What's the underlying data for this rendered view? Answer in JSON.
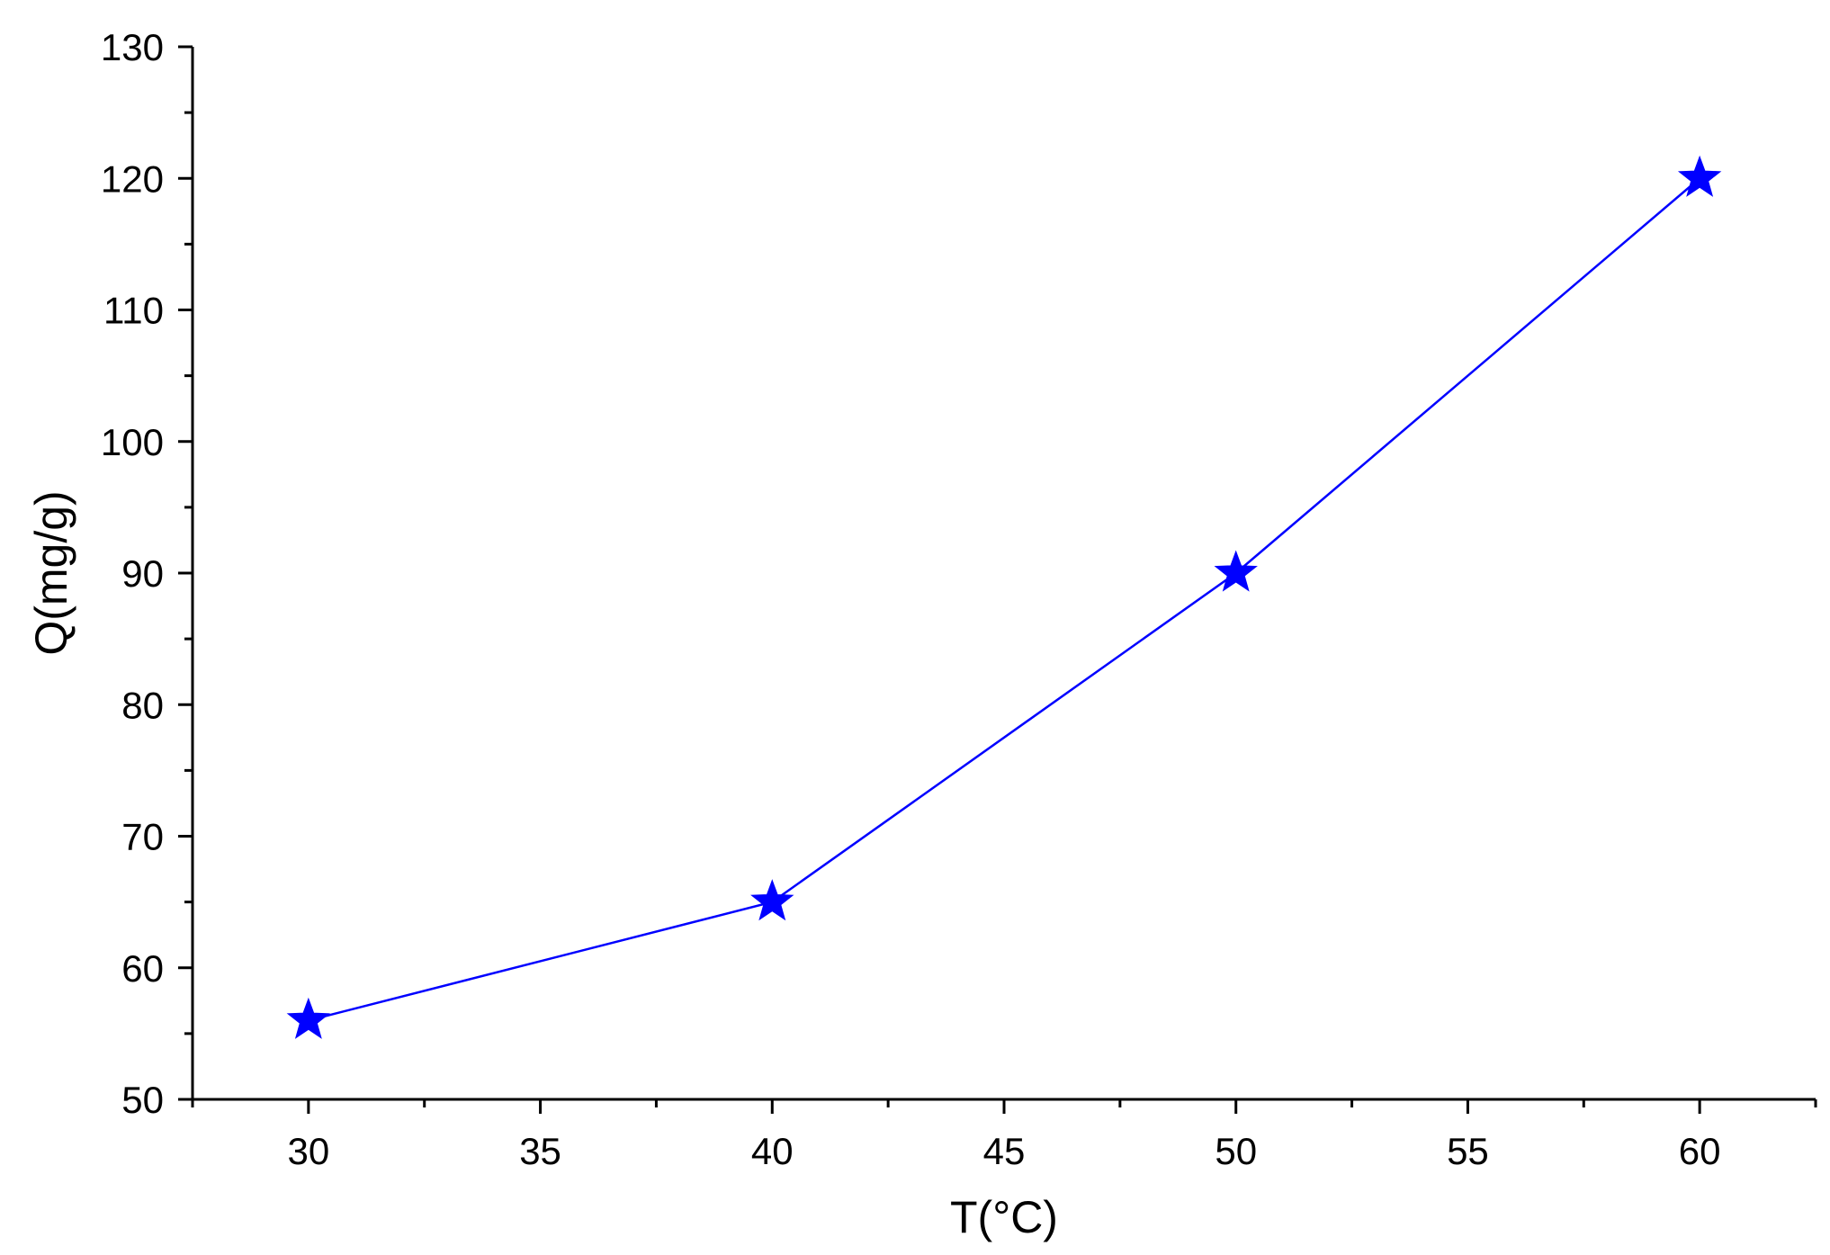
{
  "chart_data": {
    "type": "line",
    "title": "",
    "xlabel": "T(°C)",
    "ylabel": "Q(mg/g)",
    "xlim": [
      27.5,
      62.5
    ],
    "ylim": [
      50,
      130
    ],
    "x_ticks": [
      30,
      35,
      40,
      45,
      50,
      55,
      60
    ],
    "y_ticks": [
      50,
      60,
      70,
      80,
      90,
      100,
      110,
      120,
      130
    ],
    "grid": false,
    "legend": "none",
    "marker": "star",
    "color": "#0000ff",
    "series": [
      {
        "x": [
          30,
          40,
          50,
          60
        ],
        "y": [
          56,
          65,
          90,
          120
        ]
      }
    ]
  }
}
